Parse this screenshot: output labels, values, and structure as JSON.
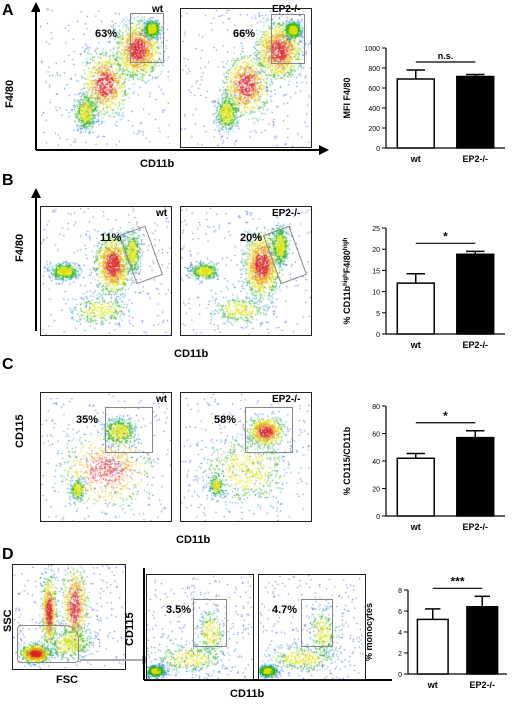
{
  "panels": {
    "A": {
      "letter": "A",
      "y_axis": "F4/80",
      "x_axis": "CD11b",
      "plots": [
        {
          "condition": "wt",
          "gate_percent": "63%"
        },
        {
          "condition": "EP2-/-",
          "gate_percent": "66%"
        }
      ]
    },
    "B": {
      "letter": "B",
      "y_axis": "F4/80",
      "x_axis": "CD11b",
      "plots": [
        {
          "condition": "wt",
          "gate_percent": "11%"
        },
        {
          "condition": "EP2-/-",
          "gate_percent": "20%"
        }
      ]
    },
    "C": {
      "letter": "C",
      "y_axis": "CD115",
      "x_axis": "CD11b",
      "plots": [
        {
          "condition": "wt",
          "gate_percent": "35%"
        },
        {
          "condition": "EP2-/-",
          "gate_percent": "58%"
        }
      ]
    },
    "D": {
      "letter": "D",
      "ssc_fsc": {
        "y_axis": "SSC",
        "x_axis": "FSC"
      },
      "y_axis": "CD115",
      "x_axis": "CD11b",
      "plots": [
        {
          "gate_percent": "3.5%"
        },
        {
          "gate_percent": "4.7%"
        }
      ]
    }
  },
  "chart_data": [
    {
      "type": "bar",
      "panel": "A",
      "categories": [
        "wt",
        "EP2-/-"
      ],
      "values": [
        690,
        715
      ],
      "errors": [
        90,
        20
      ],
      "fills": [
        "#ffffff",
        "#000000"
      ],
      "ylabel": "MFI F4/80",
      "ylim": [
        0,
        1000
      ],
      "yticks": [
        "0",
        "200",
        "400",
        "600",
        "800",
        "1000"
      ],
      "significance": "n.s."
    },
    {
      "type": "bar",
      "panel": "B",
      "categories": [
        "wt",
        "EP2-/-"
      ],
      "values": [
        12,
        18.8
      ],
      "errors": [
        2.2,
        0.7
      ],
      "fills": [
        "#ffffff",
        "#000000"
      ],
      "ylabel": "% CD11b^high F4/80^high",
      "ylim": [
        0,
        25
      ],
      "yticks": [
        "0",
        "5",
        "10",
        "15",
        "20",
        "25"
      ],
      "significance": "*"
    },
    {
      "type": "bar",
      "panel": "C",
      "categories": [
        "wt",
        "EP2-/-"
      ],
      "values": [
        42,
        57
      ],
      "errors": [
        3.5,
        5
      ],
      "fills": [
        "#ffffff",
        "#000000"
      ],
      "ylabel": "% CD115/CD11b",
      "ylim": [
        0,
        80
      ],
      "yticks": [
        "0",
        "20",
        "40",
        "60",
        "80"
      ],
      "significance": "*"
    },
    {
      "type": "bar",
      "panel": "D",
      "categories": [
        "wt",
        "EP2-/-"
      ],
      "values": [
        5.2,
        6.4
      ],
      "errors": [
        1.0,
        1.0
      ],
      "fills": [
        "#ffffff",
        "#000000"
      ],
      "ylabel": "% monocytes",
      "ylim": [
        0,
        8
      ],
      "yticks": [
        "0",
        "2",
        "4",
        "6",
        "8"
      ],
      "significance": "***"
    }
  ]
}
